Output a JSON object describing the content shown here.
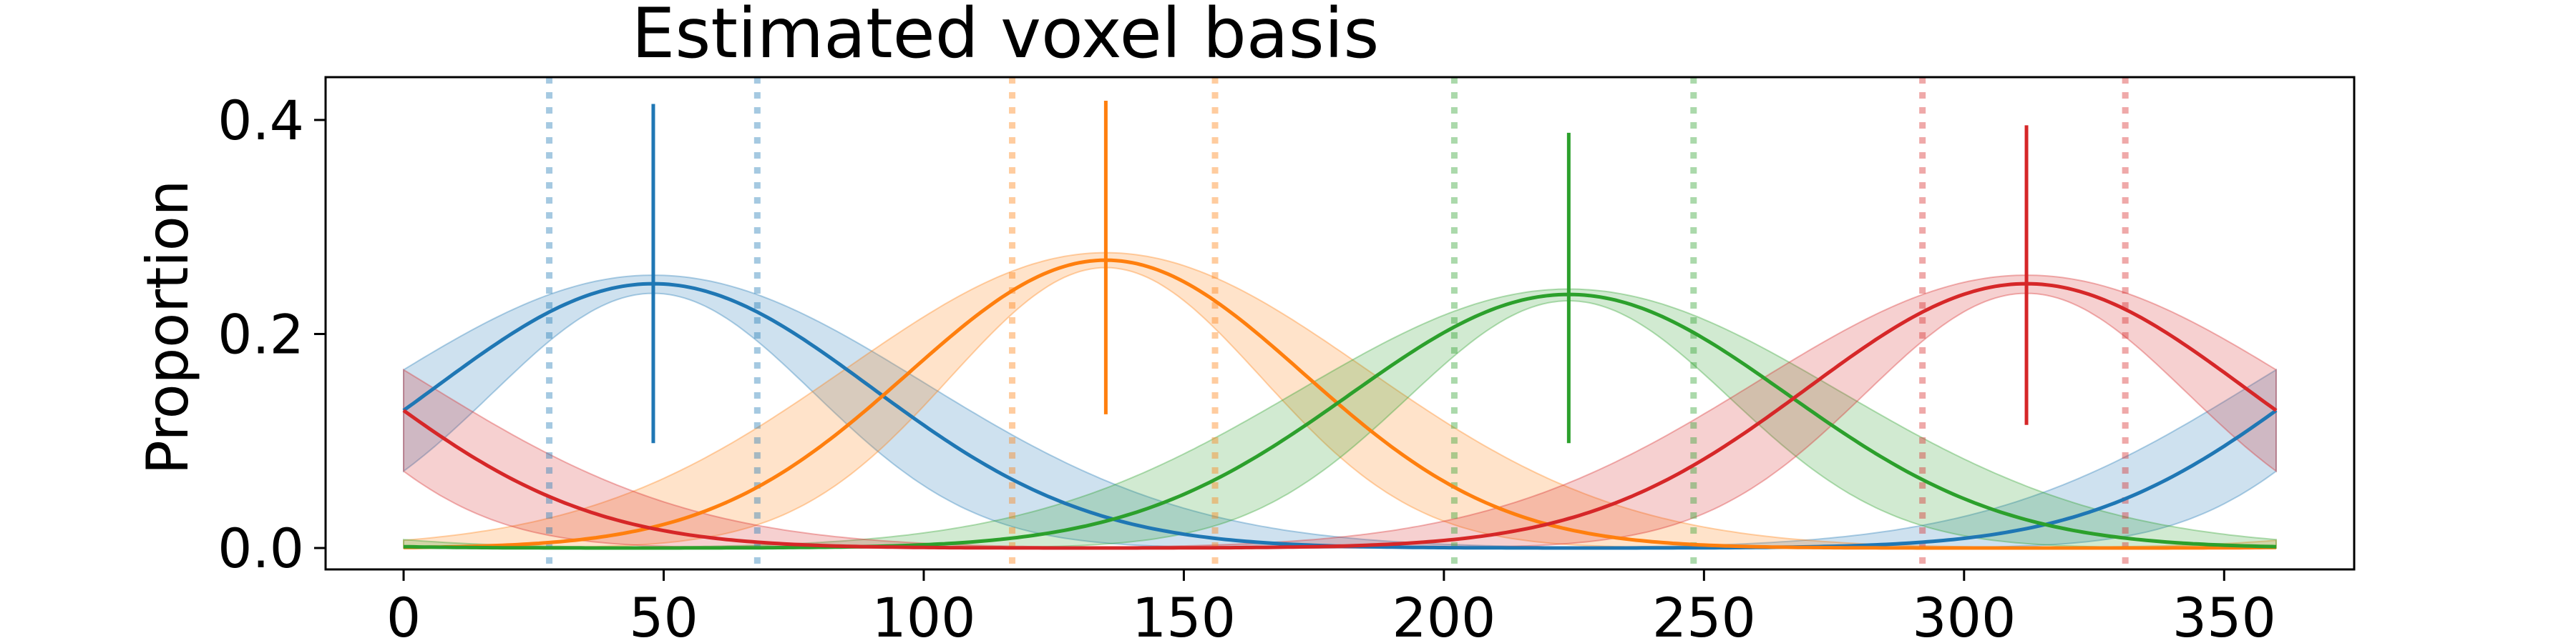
{
  "chart_data": {
    "type": "line",
    "title": "Estimated voxel basis",
    "xlabel": "",
    "ylabel": "Proportion",
    "xlim": [
      -15,
      375
    ],
    "ylim": [
      -0.02,
      0.44
    ],
    "xticks": [
      0,
      50,
      100,
      150,
      200,
      250,
      300,
      350
    ],
    "yticks": [
      0.0,
      0.2,
      0.4
    ],
    "ytick_labels": [
      "0.0",
      "0.2",
      "0.4"
    ],
    "grid": false,
    "legend": "none",
    "series": [
      {
        "color": "#1f77b4",
        "center": 48,
        "peak": 0.247,
        "sigma": 42,
        "band_upper_peak": 0.255,
        "band_lower_peak": 0.238,
        "band_upper_sigma": 52,
        "band_lower_sigma": 31,
        "vline": [
          0.098,
          0.415
        ],
        "dotted_bounds": [
          28,
          68
        ]
      },
      {
        "color": "#ff7f0e",
        "center": 135,
        "peak": 0.269,
        "sigma": 38,
        "band_upper_peak": 0.276,
        "band_lower_peak": 0.262,
        "band_upper_sigma": 50,
        "band_lower_sigma": 30,
        "vline": [
          0.125,
          0.418
        ],
        "dotted_bounds": [
          117,
          156
        ]
      },
      {
        "color": "#2ca02c",
        "center": 224,
        "peak": 0.237,
        "sigma": 42,
        "band_upper_peak": 0.242,
        "band_lower_peak": 0.231,
        "band_upper_sigma": 52,
        "band_lower_sigma": 31,
        "vline": [
          0.098,
          0.388
        ],
        "dotted_bounds": [
          202,
          248
        ]
      },
      {
        "color": "#d62728",
        "center": 312,
        "peak": 0.247,
        "sigma": 42,
        "band_upper_peak": 0.255,
        "band_lower_peak": 0.238,
        "band_upper_sigma": 52,
        "band_lower_sigma": 31,
        "vline": [
          0.115,
          0.395
        ],
        "dotted_bounds": [
          292,
          331
        ]
      }
    ]
  }
}
